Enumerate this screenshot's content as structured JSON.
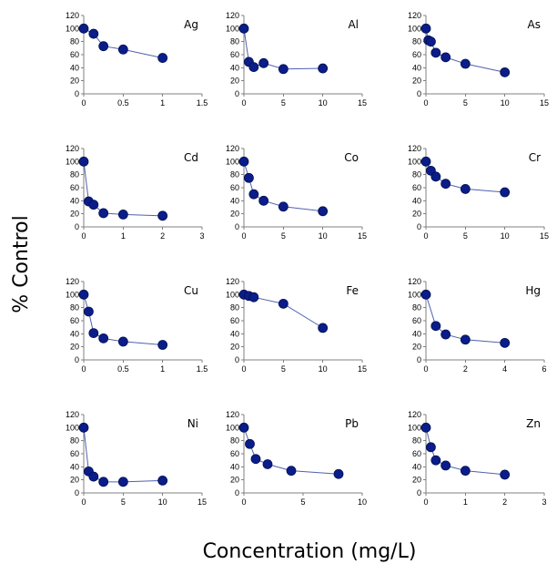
{
  "figure": {
    "ylabel": "% Control",
    "xlabel": "Concentration (mg/L)"
  },
  "chart_data": [
    {
      "type": "scatter",
      "title": "Ag",
      "x": [
        0,
        0.125,
        0.25,
        0.5,
        1
      ],
      "y": [
        100,
        92,
        73,
        68,
        55
      ],
      "xlim": [
        0,
        1.5
      ],
      "ylim": [
        0,
        120
      ],
      "xticks": [
        "0",
        "0.5",
        "1",
        "1.5"
      ],
      "xtick_values": [
        0,
        0.5,
        1,
        1.5
      ],
      "yticks": [
        0,
        20,
        40,
        60,
        80,
        100,
        120
      ],
      "grid": false,
      "line": true
    },
    {
      "type": "scatter",
      "title": "Al",
      "x": [
        0,
        0.625,
        1.25,
        2.5,
        5,
        10
      ],
      "y": [
        100,
        49,
        41,
        47,
        38,
        39
      ],
      "xlim": [
        0,
        15
      ],
      "ylim": [
        0,
        120
      ],
      "xticks": [
        "0",
        "5",
        "10",
        "15"
      ],
      "xtick_values": [
        0,
        5,
        10,
        15
      ],
      "yticks": [
        0,
        20,
        40,
        60,
        80,
        100,
        120
      ],
      "grid": false,
      "line": true
    },
    {
      "type": "scatter",
      "title": "As",
      "x": [
        0,
        0.31,
        0.63,
        1.25,
        2.5,
        5,
        10
      ],
      "y": [
        100,
        82,
        80,
        63,
        56,
        46,
        33
      ],
      "xlim": [
        0,
        15
      ],
      "ylim": [
        0,
        120
      ],
      "xticks": [
        "0",
        "5",
        "10",
        "15"
      ],
      "xtick_values": [
        0,
        5,
        10,
        15
      ],
      "yticks": [
        0,
        20,
        40,
        60,
        80,
        100,
        120
      ],
      "grid": false,
      "line": true
    },
    {
      "type": "scatter",
      "title": "Cd",
      "x": [
        0,
        0.125,
        0.25,
        0.5,
        1,
        2
      ],
      "y": [
        100,
        39,
        34,
        21,
        19,
        17
      ],
      "xlim": [
        0,
        3
      ],
      "ylim": [
        0,
        120
      ],
      "xticks": [
        "0",
        "1",
        "2",
        "3"
      ],
      "xtick_values": [
        0,
        1,
        2,
        3
      ],
      "yticks": [
        0,
        20,
        40,
        60,
        80,
        100,
        120
      ],
      "grid": false,
      "line": true
    },
    {
      "type": "scatter",
      "title": "Co",
      "x": [
        0,
        0.625,
        1.25,
        2.5,
        5,
        10
      ],
      "y": [
        100,
        75,
        50,
        40,
        31,
        24
      ],
      "xlim": [
        0,
        15
      ],
      "ylim": [
        0,
        120
      ],
      "xticks": [
        "0",
        "5",
        "10",
        "15"
      ],
      "xtick_values": [
        0,
        5,
        10,
        15
      ],
      "yticks": [
        0,
        20,
        40,
        60,
        80,
        100,
        120
      ],
      "grid": false,
      "line": true
    },
    {
      "type": "scatter",
      "title": "Cr",
      "x": [
        0,
        0.625,
        1.25,
        2.5,
        5,
        10
      ],
      "y": [
        100,
        86,
        77,
        66,
        58,
        53
      ],
      "xlim": [
        0,
        15
      ],
      "ylim": [
        0,
        120
      ],
      "xticks": [
        "0",
        "5",
        "10",
        "15"
      ],
      "xtick_values": [
        0,
        5,
        10,
        15
      ],
      "yticks": [
        0,
        20,
        40,
        60,
        80,
        100,
        120
      ],
      "grid": false,
      "line": true
    },
    {
      "type": "scatter",
      "title": "Cu",
      "x": [
        0,
        0.0625,
        0.125,
        0.25,
        0.5,
        1
      ],
      "y": [
        100,
        74,
        41,
        33,
        28,
        23
      ],
      "xlim": [
        0,
        1.5
      ],
      "ylim": [
        0,
        120
      ],
      "xticks": [
        "0",
        "0.5",
        "1",
        "1.5"
      ],
      "xtick_values": [
        0,
        0.5,
        1,
        1.5
      ],
      "yticks": [
        0,
        20,
        40,
        60,
        80,
        100,
        120
      ],
      "grid": false,
      "line": true
    },
    {
      "type": "scatter",
      "title": "Fe",
      "x": [
        0,
        0.625,
        1.25,
        5,
        10
      ],
      "y": [
        100,
        98,
        96,
        86,
        49
      ],
      "xlim": [
        0,
        15
      ],
      "ylim": [
        0,
        120
      ],
      "xticks": [
        "0",
        "5",
        "10",
        "15"
      ],
      "xtick_values": [
        0,
        5,
        10,
        15
      ],
      "yticks": [
        0,
        20,
        40,
        60,
        80,
        100,
        120
      ],
      "grid": false,
      "line": true
    },
    {
      "type": "scatter",
      "title": "Hg",
      "x": [
        0,
        0.5,
        1,
        2,
        4
      ],
      "y": [
        100,
        52,
        39,
        31,
        26
      ],
      "xlim": [
        0,
        6
      ],
      "ylim": [
        0,
        120
      ],
      "xticks": [
        "0",
        "2",
        "4",
        "6"
      ],
      "xtick_values": [
        0,
        2,
        4,
        6
      ],
      "yticks": [
        0,
        20,
        40,
        60,
        80,
        100,
        120
      ],
      "grid": false,
      "line": true
    },
    {
      "type": "scatter",
      "title": "Ni",
      "x": [
        0,
        0.625,
        1.25,
        2.5,
        5,
        10
      ],
      "y": [
        100,
        33,
        25,
        17,
        17,
        19
      ],
      "xlim": [
        0,
        15
      ],
      "ylim": [
        0,
        120
      ],
      "xticks": [
        "0",
        "5",
        "10",
        "15"
      ],
      "xtick_values": [
        0,
        5,
        10,
        15
      ],
      "yticks": [
        0,
        20,
        40,
        60,
        80,
        100,
        120
      ],
      "grid": false,
      "line": true
    },
    {
      "type": "scatter",
      "title": "Pb",
      "x": [
        0,
        0.5,
        1,
        2,
        4,
        8
      ],
      "y": [
        100,
        75,
        52,
        44,
        34,
        29
      ],
      "xlim": [
        0,
        10
      ],
      "ylim": [
        0,
        120
      ],
      "xticks": [
        "0",
        "5",
        "10"
      ],
      "xtick_values": [
        0,
        5,
        10
      ],
      "yticks": [
        0,
        20,
        40,
        60,
        80,
        100,
        120
      ],
      "grid": false,
      "line": true
    },
    {
      "type": "scatter",
      "title": "Zn",
      "x": [
        0,
        0.125,
        0.25,
        0.5,
        1,
        2
      ],
      "y": [
        100,
        70,
        50,
        42,
        34,
        28
      ],
      "xlim": [
        0,
        3
      ],
      "ylim": [
        0,
        120
      ],
      "xticks": [
        "0",
        "1",
        "2",
        "3"
      ],
      "xtick_values": [
        0,
        1,
        2,
        3
      ],
      "yticks": [
        0,
        20,
        40,
        60,
        80,
        100,
        120
      ],
      "grid": false,
      "line": true
    }
  ]
}
